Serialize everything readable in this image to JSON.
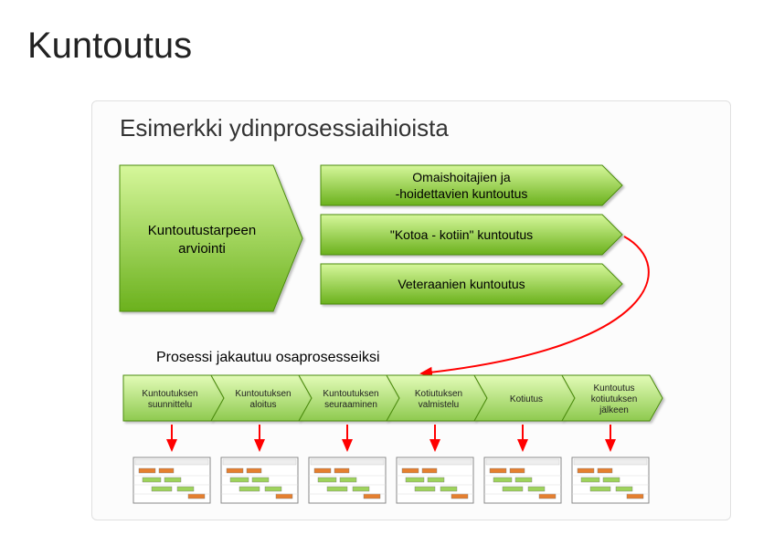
{
  "title": "Kuntoutus",
  "panel_title": "Esimerkki ydinprosessiaihioista",
  "main_shape": {
    "label_line1": "Kuntoutustarpeen",
    "label_line2": "arviointi",
    "fill_top": "#d6f79b",
    "fill_bottom": "#6bb11d",
    "stroke": "#4b8b0f",
    "text_color": "#000000",
    "font_size": 15
  },
  "branches": [
    {
      "label_line1": "Omaishoitajien ja",
      "label_line2": "-hoidettavien kuntoutus"
    },
    {
      "label_line1": "\"Kotoa - kotiin\" kuntoutus",
      "label_line2": ""
    },
    {
      "label_line1": "Veteraanien kuntoutus",
      "label_line2": ""
    }
  ],
  "branch_style": {
    "fill_top": "#d6f79b",
    "fill_bottom": "#6bb11d",
    "stroke": "#4b8b0f",
    "text_color": "#000000",
    "font_size": 14,
    "height": 44,
    "gap": 10
  },
  "sub_title": "Prosessi jakautuu osaprosesseiksi",
  "sub_title_style": {
    "font_size": 16,
    "color": "#000000"
  },
  "subprocesses": [
    {
      "label_line1": "Kuntoutuksen",
      "label_line2": "suunnittelu",
      "label_line3": ""
    },
    {
      "label_line1": "Kuntoutuksen",
      "label_line2": "aloitus",
      "label_line3": ""
    },
    {
      "label_line1": "Kuntoutuksen",
      "label_line2": "seuraaminen",
      "label_line3": ""
    },
    {
      "label_line1": "Kotiutuksen",
      "label_line2": "valmistelu",
      "label_line3": ""
    },
    {
      "label_line1": "Kotiutus",
      "label_line2": "",
      "label_line3": ""
    },
    {
      "label_line1": "Kuntoutus",
      "label_line2": "kotiutuksen",
      "label_line3": "jälkeen"
    }
  ],
  "subprocess_style": {
    "fill_top": "#e3fbb8",
    "fill_bottom": "#8ec94f",
    "stroke": "#4b8b0f",
    "text_color": "#222222",
    "font_size": 10
  },
  "curve_arrow_color": "#ff0000",
  "curve_arrow_width": 2,
  "down_arrow_color": "#ff0000",
  "down_arrow_width": 2,
  "mini_diagram": {
    "border": "#888888",
    "bg": "#ffffff",
    "bar_colors": [
      "#e57f2f",
      "#9ed35c",
      "#9ed35c",
      "#9ed35c",
      "#e57f2f"
    ]
  },
  "panel_border": "#e0e0e0",
  "panel_bg": "#fcfcfc",
  "page_bg": "#ffffff"
}
